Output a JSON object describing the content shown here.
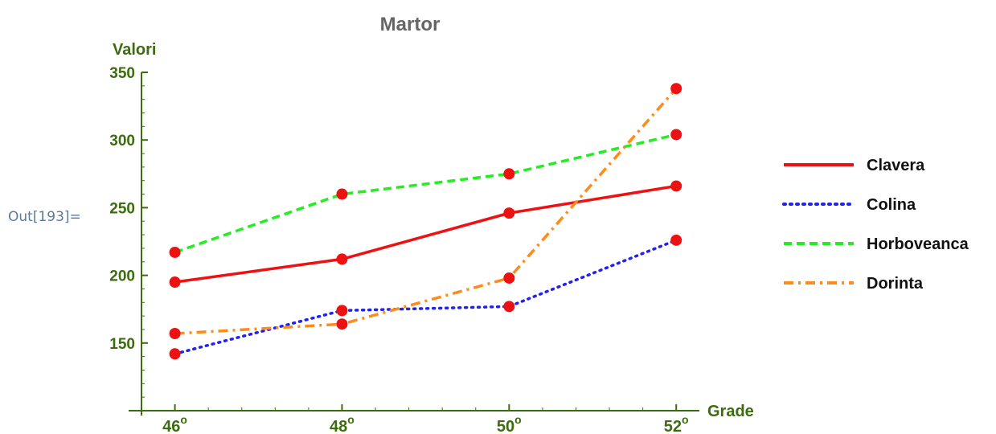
{
  "cell": {
    "out_label": "Out[193]="
  },
  "chart_data": {
    "type": "line",
    "title": "Martor",
    "xlabel": "Grade",
    "ylabel": "Valori",
    "x": [
      46,
      48,
      50,
      52
    ],
    "x_tick_labels": [
      "46",
      "48",
      "50",
      "52"
    ],
    "x_tick_suffix": "o",
    "y_ticks": [
      150,
      200,
      250,
      300,
      350
    ],
    "xlim": [
      45.6,
      52.2
    ],
    "ylim": [
      100,
      350
    ],
    "grid": false,
    "legend_position": "right",
    "marker_color": "#ee1111",
    "axis_color": "#3d6b10",
    "series": [
      {
        "name": "Clavera",
        "values": [
          195,
          212,
          246,
          266
        ],
        "color": "#ee1111",
        "style": "solid"
      },
      {
        "name": "Colina",
        "values": [
          142,
          174,
          177,
          226
        ],
        "color": "#2222ee",
        "style": "dotted"
      },
      {
        "name": "Horboveanca",
        "values": [
          217,
          260,
          275,
          304
        ],
        "color": "#22ee22",
        "style": "dashed"
      },
      {
        "name": "Dorinta",
        "values": [
          157,
          164,
          198,
          338
        ],
        "color": "#ff8c1a",
        "style": "dashdot"
      }
    ]
  }
}
